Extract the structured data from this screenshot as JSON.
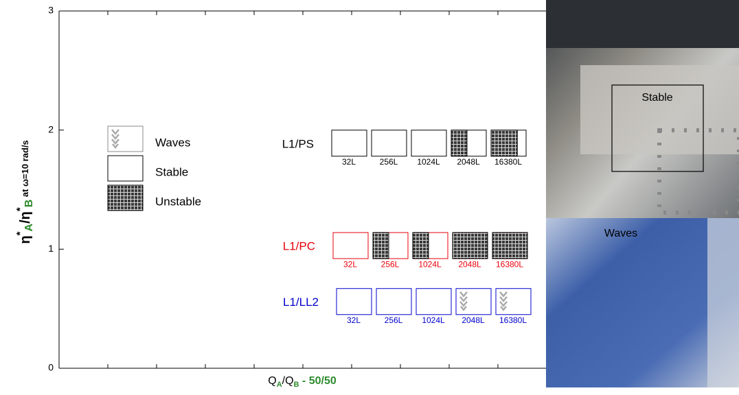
{
  "chart_data": {
    "type": "flow-map",
    "ylabel_parts": [
      "η",
      "*",
      "A",
      "/η",
      "*",
      "B",
      " at ω=10 rad/s"
    ],
    "xlabel_parts": [
      "Q",
      "A",
      "/Q",
      "B",
      " - 50/50"
    ],
    "ylim": [
      0,
      3
    ],
    "yticks": [
      0,
      1,
      2,
      3
    ],
    "legend": [
      "Waves",
      "Stable",
      "Unstable"
    ],
    "rows": [
      {
        "name": "L1/PS",
        "color": "#000000",
        "y": 1.89,
        "items": [
          {
            "label": "32L",
            "state": "Stable"
          },
          {
            "label": "256L",
            "state": "Stable"
          },
          {
            "label": "1024L",
            "state": "Stable"
          },
          {
            "label": "2048L",
            "state": "Unstable",
            "fraction": 0.45
          },
          {
            "label": "16380L",
            "state": "Unstable",
            "fraction": 0.75
          }
        ]
      },
      {
        "name": "L1/PC",
        "color": "#e8000b",
        "y": 1.03,
        "items": [
          {
            "label": "32L",
            "state": "Stable"
          },
          {
            "label": "256L",
            "state": "Unstable",
            "fraction": 0.45
          },
          {
            "label": "1024L",
            "state": "Unstable",
            "fraction": 0.45
          },
          {
            "label": "2048L",
            "state": "Unstable",
            "fraction": 1
          },
          {
            "label": "16380L",
            "state": "Unstable",
            "fraction": 1
          }
        ]
      },
      {
        "name": "L1/LL2",
        "color": "#0000cc",
        "y": 0.56,
        "items": [
          {
            "label": "32L",
            "state": "Stable"
          },
          {
            "label": "256L",
            "state": "Stable"
          },
          {
            "label": "1024L",
            "state": "Stable"
          },
          {
            "label": "2048L",
            "state": "Waves"
          },
          {
            "label": "16380L",
            "state": "Waves"
          }
        ]
      }
    ],
    "photos": [
      "Stable",
      "Waves"
    ]
  }
}
